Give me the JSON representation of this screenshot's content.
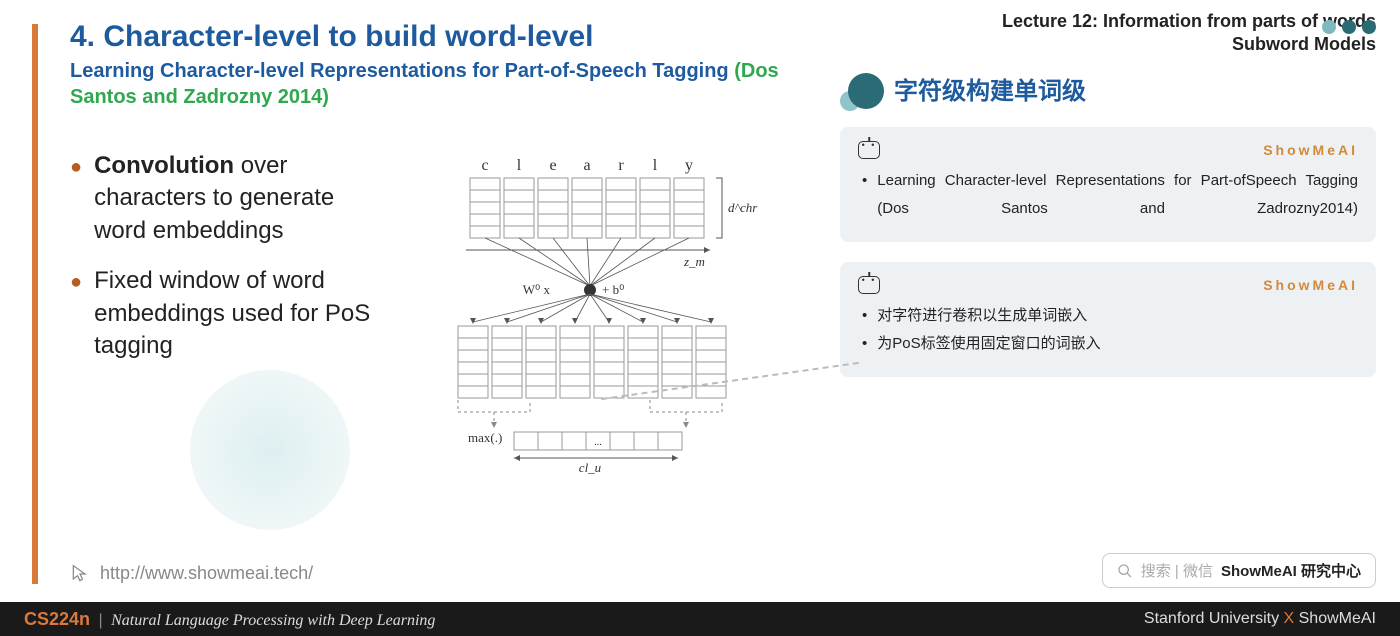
{
  "lecture": {
    "line1": "Lecture 12: Information from parts of words",
    "line2": "Subword Models"
  },
  "slide": {
    "title": "4. Character-level to build word-level",
    "subtitle_a": "Learning Character-level Representations for Part-of-Speech Tagging  ",
    "citation": "(Dos Santos and Zadrozny 2014)",
    "bullets": [
      {
        "strong": "Convolution",
        "rest": " over characters to generate word embeddings"
      },
      {
        "strong": "",
        "rest": "Fixed window of word embeddings used for PoS tagging"
      }
    ],
    "link": "http://www.showmeai.tech/"
  },
  "diagram": {
    "chars": [
      "c",
      "l",
      "e",
      "a",
      "r",
      "l",
      "y"
    ],
    "d_label": "d^chr",
    "z_label": "z_m",
    "conv_label_left": "W⁰ x",
    "conv_label_right": "+ b⁰",
    "max_label": "max(.)",
    "cl_label": "cl_u",
    "colors": {
      "box_stroke": "#888",
      "line": "#555",
      "text": "#333"
    }
  },
  "section": {
    "title_cn": "字符级构建单词级"
  },
  "cards": [
    {
      "brand": "ShowMeAI",
      "items": [
        "Learning Character-level Representations for Part-ofSpeech Tagging (Dos Santos and Zadrozny2014)"
      ],
      "justified": true
    },
    {
      "brand": "ShowMeAI",
      "items": [
        "对字符进行卷积以生成单词嵌入",
        "为PoS标签使用固定窗口的词嵌入"
      ],
      "justified": false
    }
  ],
  "decor_dots": [
    "#7fb8be",
    "#2a6b75",
    "#2a6b75"
  ],
  "search": {
    "placeholder": "搜索 | 微信",
    "strong": "ShowMeAI 研究中心"
  },
  "footer": {
    "code": "CS224n",
    "sep": "|",
    "name": "Natural Language Processing with Deep Learning",
    "right_a": "Stanford University ",
    "right_x": "X",
    "right_b": " ShowMeAI"
  }
}
